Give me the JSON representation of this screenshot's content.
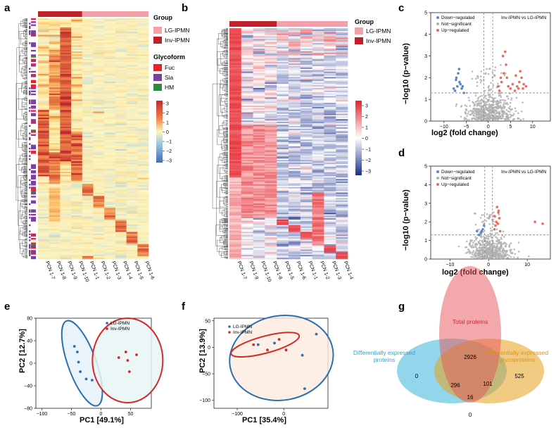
{
  "panel_labels": [
    "a",
    "b",
    "c",
    "d",
    "e",
    "f",
    "g"
  ],
  "colors": {
    "lg": "#f4a0a8",
    "inv": "#c0202a",
    "fuc": "#e8212a",
    "sia": "#7b3fa0",
    "hm": "#2a8a3e",
    "up": "#ee6a5e",
    "down": "#5b86c8",
    "ns": "#b0b0b0",
    "venn_total": "#e8545a",
    "venn_dep": "#3ab2d8",
    "venn_deg": "#e8a01c"
  },
  "heatmap_a": {
    "columns": [
      "PCN 1-7",
      "PCN 1-8",
      "PCN 1-9",
      "PCN 1-10",
      "PCN 1-1",
      "PCN 1-2",
      "PCN 1-3",
      "PCN 1-4",
      "PCN 1-5",
      "PCN 1-6"
    ],
    "legend_group_title": "Group",
    "groups": [
      "LG-IPMN",
      "Inv-IPMN"
    ],
    "legend_glyco_title": "Glycoform",
    "glycoforms": [
      "Fuc",
      "Sia",
      "HM"
    ],
    "scale_ticks": [
      "3",
      "2",
      "1",
      "0",
      "−1",
      "−2",
      "−3"
    ]
  },
  "heatmap_b": {
    "columns": [
      "PCN 1-7",
      "PCN 1-9",
      "PCN 1-10",
      "PCN 1-8",
      "PCN 1-5",
      "PCN 1-6",
      "PCN 1-1",
      "PCN 1-2",
      "PCN 1-3",
      "PCN 1-4"
    ],
    "legend_group_title": "Group",
    "groups": [
      "LG-IPMN",
      "Inv-IPMN"
    ],
    "scale_ticks": [
      "3",
      "2",
      "1",
      "0",
      "−1",
      "−2",
      "−3"
    ]
  },
  "chart_data": [
    {
      "id": "c",
      "type": "scatter",
      "title": "Inv-IPMN vs LG-IPMN",
      "xlabel": "log2 (fold change)",
      "ylabel": "−log10 (p−value)",
      "xlim": [
        -13,
        14
      ],
      "ylim": [
        0,
        5
      ],
      "xticks": [
        "−10",
        "−5",
        "0",
        "5",
        "10"
      ],
      "yticks": [
        "0",
        "1",
        "2",
        "3",
        "4",
        "5"
      ],
      "legend": [
        "Down−regulated",
        "Not−significant",
        "Up−regulated"
      ],
      "series": [
        {
          "name": "Down−regulated",
          "points": [
            [
              -7.5,
              1.4
            ],
            [
              -7,
              1.6
            ],
            [
              -6.5,
              1.8
            ],
            [
              -7.2,
              2.0
            ],
            [
              -6.8,
              2.2
            ],
            [
              -6,
              1.5
            ],
            [
              -6.3,
              1.7
            ],
            [
              -5.5,
              1.3
            ],
            [
              -7.8,
              1.5
            ],
            [
              -6.6,
              2.4
            ],
            [
              -7.3,
              1.9
            ],
            [
              -5.8,
              1.6
            ]
          ]
        },
        {
          "name": "Up−regulated",
          "points": [
            [
              2.5,
              1.4
            ],
            [
              3,
              1.8
            ],
            [
              3.5,
              2.2
            ],
            [
              4,
              2.6
            ],
            [
              2.8,
              2.0
            ],
            [
              3.3,
              3.0
            ],
            [
              4.5,
              1.6
            ],
            [
              5,
              1.5
            ],
            [
              6,
              1.4
            ],
            [
              6.5,
              1.6
            ],
            [
              7,
              1.8
            ],
            [
              7.5,
              2.0
            ],
            [
              8,
              1.7
            ],
            [
              7.2,
              2.3
            ],
            [
              6.8,
              1.5
            ],
            [
              8.5,
              1.6
            ],
            [
              3.8,
              3.2
            ],
            [
              2.2,
              1.6
            ],
            [
              4.2,
              2.0
            ],
            [
              5.5,
              1.7
            ],
            [
              7.8,
              1.5
            ],
            [
              6.2,
              2.1
            ]
          ]
        }
      ]
    },
    {
      "id": "d",
      "type": "scatter",
      "title": "Inv-IPMN vs LG-IPMN",
      "xlabel": "log2 (fold change)",
      "ylabel": "−log10 (p−value)",
      "xlim": [
        -15,
        16
      ],
      "ylim": [
        0,
        5
      ],
      "xticks": [
        "−10",
        "0",
        "10"
      ],
      "yticks": [
        "0",
        "1",
        "2",
        "3",
        "4",
        "5"
      ],
      "legend": [
        "Down−regulated",
        "Not−significant",
        "Up−regulated"
      ],
      "series": [
        {
          "name": "Down−regulated",
          "points": [
            [
              -2,
              1.4
            ],
            [
              -1.5,
              1.6
            ],
            [
              -3,
              1.5
            ],
            [
              -1.2,
              1.8
            ],
            [
              -2.5,
              1.3
            ],
            [
              -1.8,
              1.5
            ]
          ]
        },
        {
          "name": "Up−regulated",
          "points": [
            [
              1.5,
              1.6
            ],
            [
              2,
              2.0
            ],
            [
              2.5,
              2.5
            ],
            [
              2.2,
              2.8
            ],
            [
              1.8,
              1.8
            ],
            [
              2.8,
              2.2
            ],
            [
              3,
              1.5
            ],
            [
              1.6,
              2.3
            ],
            [
              2.4,
              1.9
            ],
            [
              12,
              2.0
            ],
            [
              14,
              1.9
            ],
            [
              2.6,
              2.6
            ]
          ]
        }
      ]
    },
    {
      "id": "e",
      "type": "scatter",
      "xlabel": "PC1 [49.1%]",
      "ylabel": "PC2 [12.7%]",
      "xlim": [
        -110,
        85
      ],
      "ylim": [
        -80,
        80
      ],
      "xticks": [
        "−100",
        "−50",
        "0",
        "50"
      ],
      "yticks": [
        "−80",
        "−40",
        "0",
        "40",
        "80"
      ],
      "series": [
        {
          "name": "LG-IPMN",
          "points": [
            [
              -45,
              30
            ],
            [
              -40,
              20
            ],
            [
              -38,
              2
            ],
            [
              -35,
              -15
            ],
            [
              -25,
              -28
            ],
            [
              -15,
              -30
            ]
          ]
        },
        {
          "name": "Inv-IPMN",
          "points": [
            [
              30,
              10
            ],
            [
              42,
              20
            ],
            [
              48,
              -15
            ],
            [
              60,
              15
            ],
            [
              45,
              5
            ]
          ]
        }
      ]
    },
    {
      "id": "f",
      "type": "scatter",
      "xlabel": "PC1 [35.4%]",
      "ylabel": "PC2 [13.9%]",
      "xlim": [
        -150,
        95
      ],
      "ylim": [
        -115,
        55
      ],
      "xticks": [
        "−100",
        "0"
      ],
      "yticks": [
        "−100",
        "−50",
        "0",
        "50"
      ],
      "series": [
        {
          "name": "LG-IPMN",
          "points": [
            [
              -55,
              5
            ],
            [
              -20,
              8
            ],
            [
              40,
              -15
            ],
            [
              70,
              25
            ],
            [
              45,
              -78
            ]
          ]
        },
        {
          "name": "Inv-IPMN",
          "points": [
            [
              -65,
              5
            ],
            [
              -35,
              -5
            ],
            [
              -10,
              15
            ],
            [
              5,
              -5
            ]
          ]
        }
      ]
    },
    {
      "id": "g",
      "type": "venn",
      "sets": [
        "Total proteins",
        "Differentially expressed proteins",
        "Differentially expressed glycoproteins"
      ],
      "regions": {
        "total_only": 2926,
        "dep_only": 0,
        "deg_only": 525,
        "total_dep": 296,
        "total_deg": 101,
        "dep_deg": 0,
        "all_three": 16
      }
    }
  ],
  "text": {
    "c_legend_1": "Down−regulated",
    "c_legend_2": "Not−significant",
    "c_legend_3": "Up−regulated",
    "cmp": "Inv-IPMN vs LG-IPMN",
    "vx": "log2 (fold change)",
    "vy": "−log10 (p−value)",
    "e_xlab": "PC1 [49.1%]",
    "e_ylab": "PC2 [12.7%]",
    "f_xlab": "PC1 [35.4%]",
    "f_ylab": "PC2 [13.9%]",
    "lg": "LG-IPMN",
    "inv": "Inv-IPMN",
    "venn_total": "Total proteins",
    "venn_dep_1": "Differentially expressed",
    "venn_dep_2": "proteins",
    "venn_deg_1": "Differentially expressed",
    "venn_deg_2": "glycoproteins",
    "n_2926": "2926",
    "n_0a": "0",
    "n_525": "525",
    "n_296": "296",
    "n_101": "101",
    "n_0b": "0",
    "n_16": "16"
  }
}
